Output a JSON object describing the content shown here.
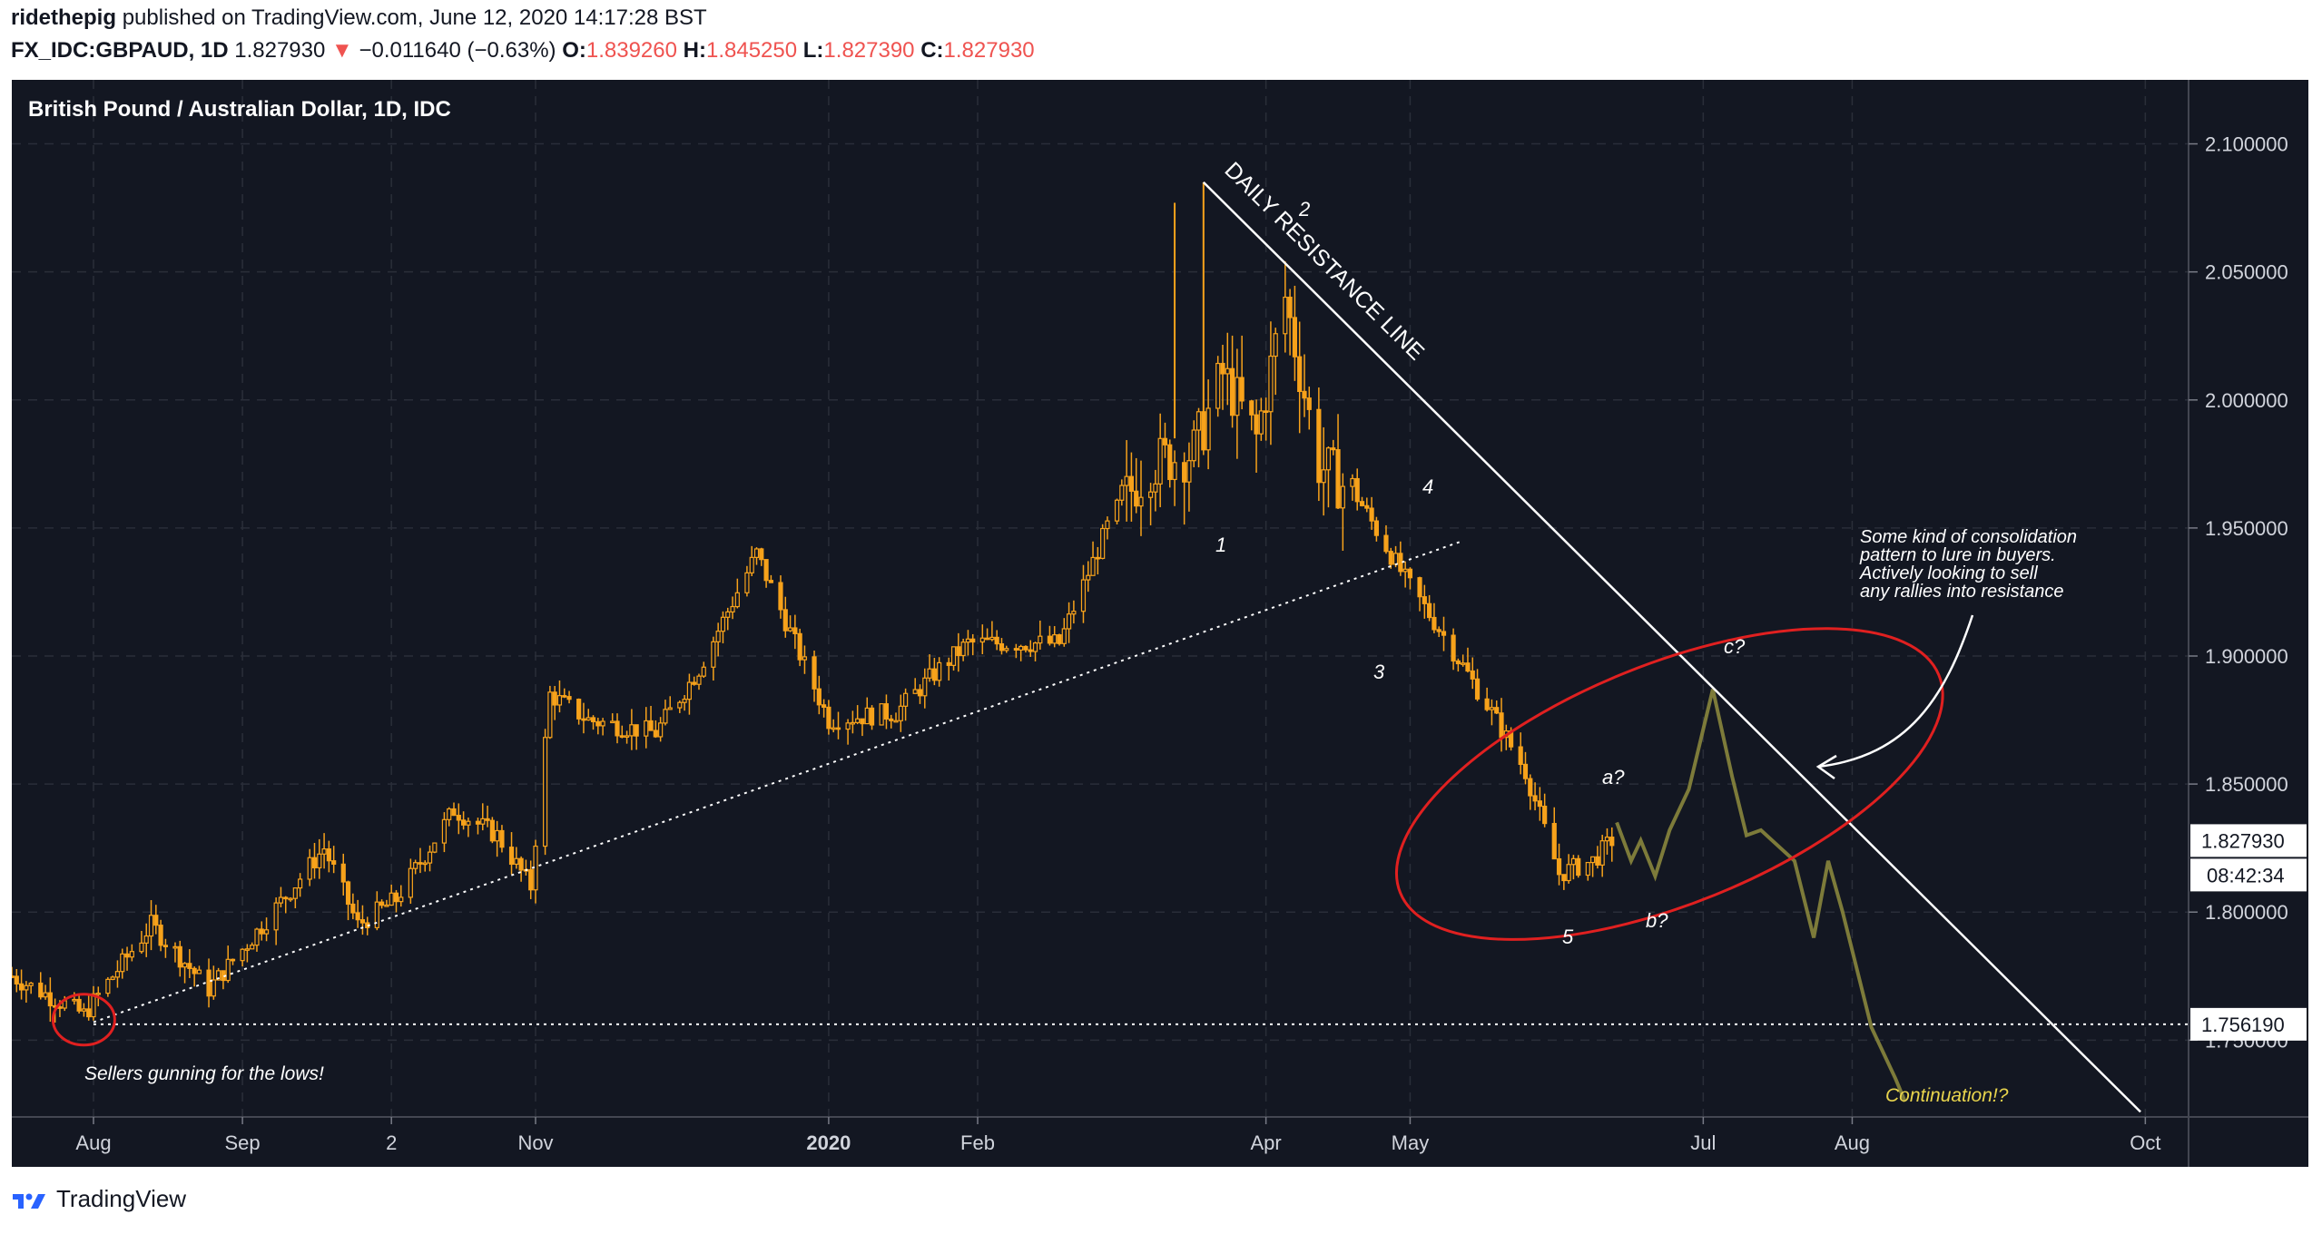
{
  "header": {
    "publisher": "ridethepig",
    "published_text": "published on TradingView.com, June 12, 2020 14:17:28 BST",
    "symbol": "FX_IDC:GBPAUD, 1D",
    "last_price": "1.827930",
    "change_arrow": "▼",
    "change": "−0.011640 (−0.63%)",
    "open_label": "O:",
    "open": "1.839260",
    "high_label": "H:",
    "high": "1.845250",
    "low_label": "L:",
    "low": "1.827390",
    "close_label": "C:",
    "close": "1.827930"
  },
  "footer": {
    "brand": "TradingView",
    "logo_icon": "tradingview-logo-icon"
  },
  "colors": {
    "background": "#131722",
    "candle": "#f7a21b",
    "projection": "#7d7b3a",
    "grid": "#2a2e39",
    "resistance": "#ffffff",
    "circle": "#e02020",
    "price_red": "#ef5350",
    "annotation_yellow": "#e8d44d"
  },
  "chart_data": {
    "type": "candlestick",
    "title": "British Pound / Australian Dollar, 1D, IDC",
    "x_labels": [
      "Aug",
      "Sep",
      "2",
      "Nov",
      "2020",
      "Feb",
      "Apr",
      "May",
      "Jul",
      "Aug",
      "Oct"
    ],
    "x_label_dates": [
      "2019-08-01",
      "2019-09-01",
      "2019-10-02",
      "2019-11-01",
      "2020-01-01",
      "2020-02-01",
      "2020-04-01",
      "2020-05-01",
      "2020-07-01",
      "2020-08-01",
      "2020-10-01"
    ],
    "y_ticks": [
      "2.100000",
      "2.050000",
      "2.000000",
      "1.950000",
      "1.900000",
      "1.850000",
      "1.800000",
      "1.750000"
    ],
    "y_tick_values": [
      2.1,
      2.05,
      2.0,
      1.95,
      1.9,
      1.85,
      1.8,
      1.75
    ],
    "y_range": [
      1.72,
      2.125
    ],
    "x_range": [
      "2019-07-15",
      "2020-10-10"
    ],
    "grid": true,
    "price_key_points": [
      [
        "2019-07-15",
        1.775
      ],
      [
        "2019-07-30",
        1.76
      ],
      [
        "2019-08-13",
        1.795
      ],
      [
        "2019-08-25",
        1.77
      ],
      [
        "2019-09-03",
        1.79
      ],
      [
        "2019-09-18",
        1.825
      ],
      [
        "2019-09-25",
        1.795
      ],
      [
        "2019-10-03",
        1.805
      ],
      [
        "2019-10-15",
        1.84
      ],
      [
        "2019-10-24",
        1.83
      ],
      [
        "2019-10-31",
        1.81
      ],
      [
        "2019-11-04",
        1.885
      ],
      [
        "2019-11-12",
        1.875
      ],
      [
        "2019-11-26",
        1.87
      ],
      [
        "2019-12-05",
        1.895
      ],
      [
        "2019-12-17",
        1.94
      ],
      [
        "2019-12-25",
        1.905
      ],
      [
        "2020-01-01",
        1.875
      ],
      [
        "2020-01-15",
        1.878
      ],
      [
        "2020-01-24",
        1.895
      ],
      [
        "2020-01-30",
        1.905
      ],
      [
        "2020-02-08",
        1.905
      ],
      [
        "2020-02-18",
        1.905
      ],
      [
        "2020-02-29",
        1.955
      ],
      [
        "2020-03-08",
        1.975
      ],
      [
        "2020-03-17",
        1.98
      ],
      [
        "2020-03-23",
        2.01
      ],
      [
        "2020-03-30",
        1.985
      ],
      [
        "2020-04-05",
        2.04
      ],
      [
        "2020-04-12",
        1.975
      ],
      [
        "2020-04-20",
        1.962
      ],
      [
        "2020-04-30",
        1.93
      ],
      [
        "2020-05-08",
        1.908
      ],
      [
        "2020-05-18",
        1.878
      ],
      [
        "2020-05-25",
        1.855
      ],
      [
        "2020-06-01",
        1.815
      ],
      [
        "2020-06-08",
        1.82
      ],
      [
        "2020-06-12",
        1.828
      ]
    ],
    "projection_points": [
      [
        "2020-06-13",
        1.835
      ],
      [
        "2020-06-16",
        1.82
      ],
      [
        "2020-06-18",
        1.828
      ],
      [
        "2020-06-21",
        1.814
      ],
      [
        "2020-06-24",
        1.832
      ],
      [
        "2020-06-28",
        1.848
      ],
      [
        "2020-07-03",
        1.887
      ],
      [
        "2020-07-07",
        1.853
      ],
      [
        "2020-07-10",
        1.83
      ],
      [
        "2020-07-13",
        1.832
      ],
      [
        "2020-07-20",
        1.82
      ],
      [
        "2020-07-24",
        1.79
      ],
      [
        "2020-07-27",
        1.82
      ],
      [
        "2020-07-30",
        1.8
      ],
      [
        "2020-08-05",
        1.755
      ],
      [
        "2020-08-10",
        1.735
      ],
      [
        "2020-08-12",
        1.726
      ]
    ],
    "current_price": {
      "label": "1.827930",
      "value": 1.82793,
      "countdown": "08:42:34"
    },
    "support_level": {
      "label": "1.756190",
      "value": 1.75619
    },
    "resistance_line": {
      "label": "DAILY RESISTANCE LINE",
      "start": [
        "2020-03-19",
        2.085
      ],
      "end": [
        "2020-09-30",
        1.722
      ]
    },
    "trend_line": {
      "start": [
        "2019-08-01",
        1.757
      ],
      "end": [
        "2020-05-12",
        1.945
      ]
    },
    "annotations": {
      "wave_1": "1",
      "wave_2": "2",
      "wave_3": "3",
      "wave_4": "4",
      "wave_5": "5",
      "wave_a": "a?",
      "wave_b": "b?",
      "wave_c": "c?",
      "lows_note": "Sellers gunning for the lows!",
      "consolidation_note": [
        "Some kind of consolidation",
        "pattern to lure in buyers.",
        "Actively looking to sell",
        "any rallies into resistance"
      ],
      "continuation_note": "Continuation!?"
    }
  }
}
